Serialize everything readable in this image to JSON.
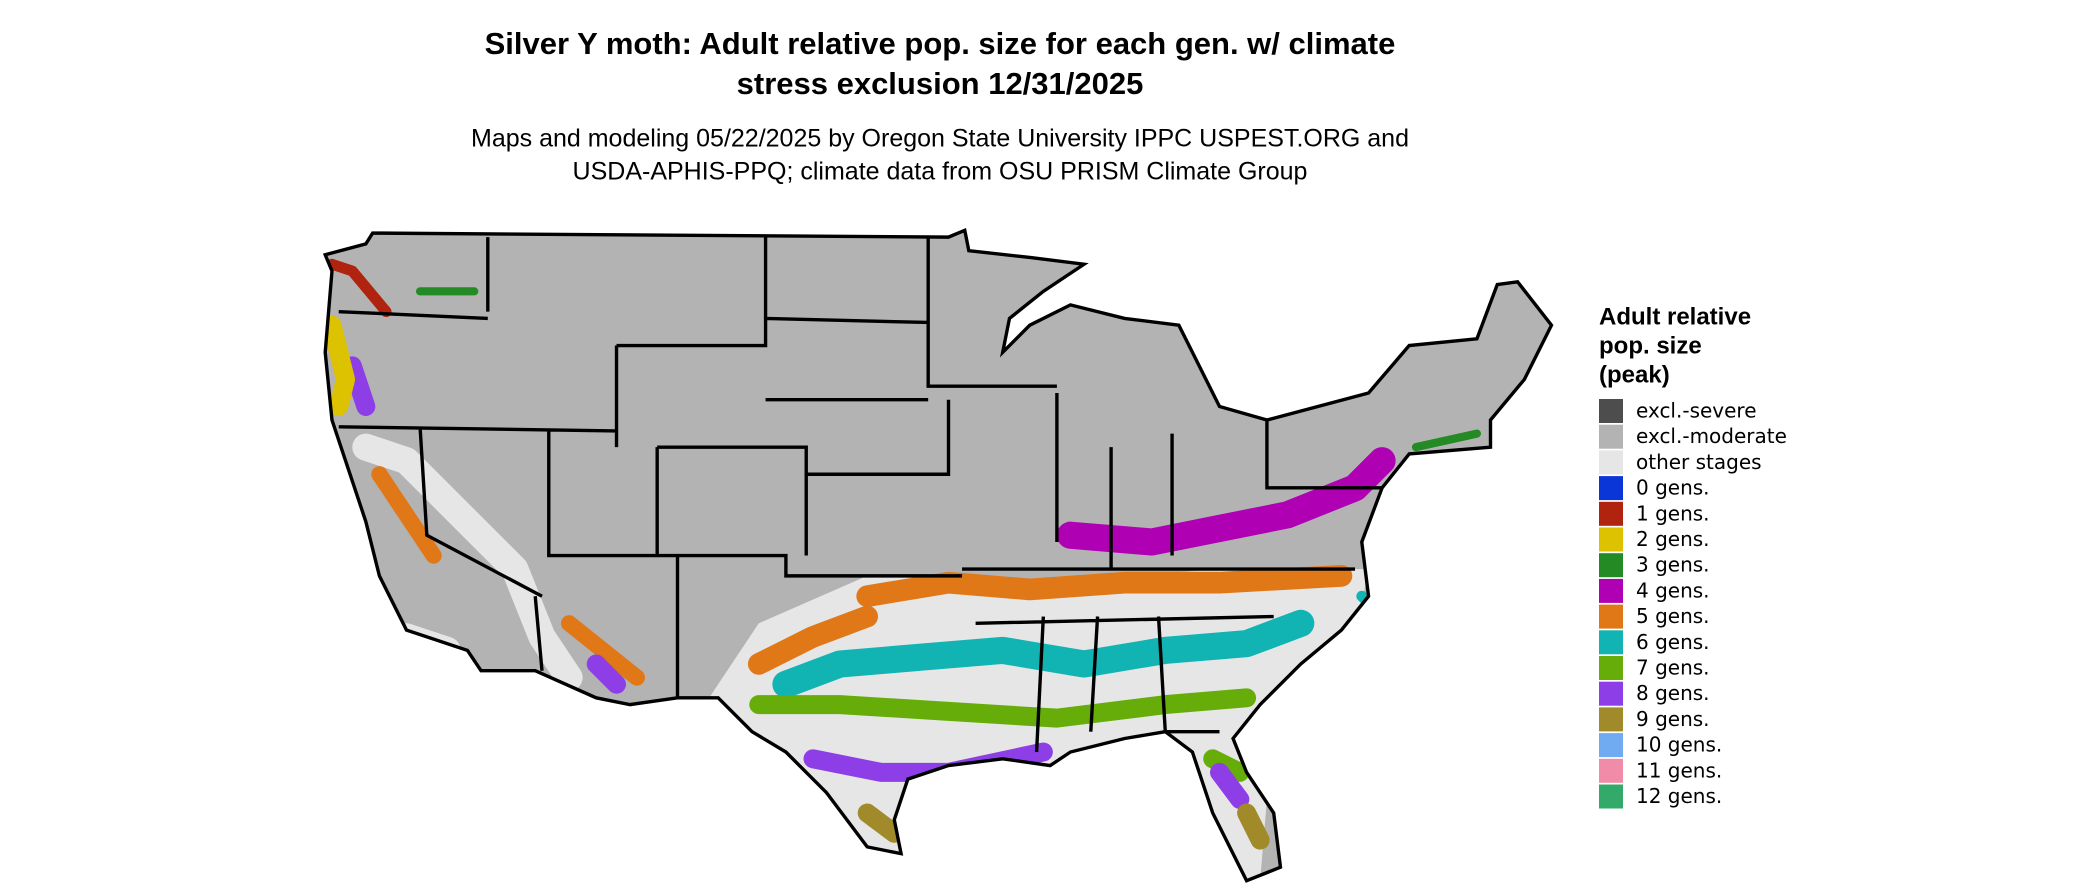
{
  "title": [
    "Silver Y moth: Adult relative pop. size for each gen. w/ climate",
    "stress exclusion 12/31/2025"
  ],
  "subtitle": [
    "Maps and modeling 05/22/2025 by Oregon State University IPPC USPEST.ORG and",
    "USDA-APHIS-PPQ; climate data from OSU PRISM Climate Group"
  ],
  "legend": {
    "title": [
      "Adult relative",
      "pop. size",
      "(peak)"
    ],
    "items": [
      {
        "label": "excl.-severe",
        "color": "#4d4d4d"
      },
      {
        "label": "excl.-moderate",
        "color": "#b3b3b3"
      },
      {
        "label": "other stages",
        "color": "#e6e6e6"
      },
      {
        "label": "0 gens.",
        "color": "#0a36d8"
      },
      {
        "label": "1 gens.",
        "color": "#b0230f"
      },
      {
        "label": "2 gens.",
        "color": "#dcc200"
      },
      {
        "label": "3 gens.",
        "color": "#248a24"
      },
      {
        "label": "4 gens.",
        "color": "#b000b4"
      },
      {
        "label": "5 gens.",
        "color": "#e07818"
      },
      {
        "label": "6 gens.",
        "color": "#12b3b3"
      },
      {
        "label": "7 gens.",
        "color": "#66ad0a"
      },
      {
        "label": "8 gens.",
        "color": "#8e3ee6"
      },
      {
        "label": "9 gens.",
        "color": "#a08a2a"
      },
      {
        "label": "10 gens.",
        "color": "#70aaf0"
      },
      {
        "label": "11 gens.",
        "color": "#f08ca8"
      },
      {
        "label": "12 gens.",
        "color": "#33aa6a"
      }
    ]
  }
}
